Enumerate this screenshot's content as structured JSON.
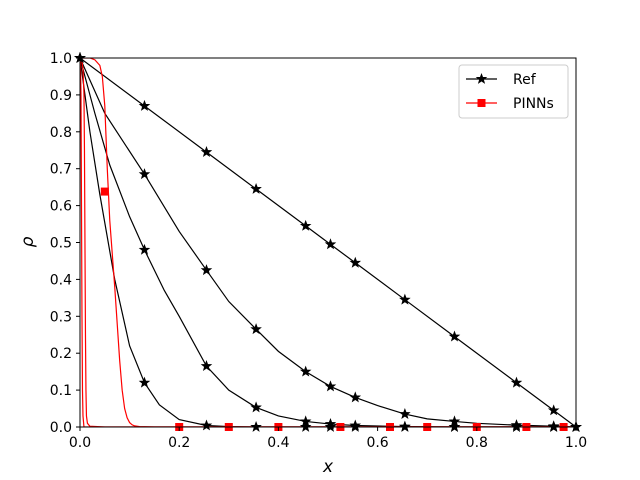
{
  "chart_data": {
    "type": "line",
    "xlabel": "x",
    "ylabel": "ρ",
    "xlim": [
      0.0,
      1.0
    ],
    "ylim": [
      0.0,
      1.0
    ],
    "xticks": [
      "0.0",
      "0.2",
      "0.4",
      "0.6",
      "0.8",
      "1.0"
    ],
    "yticks": [
      "0.0",
      "0.1",
      "0.2",
      "0.3",
      "0.4",
      "0.5",
      "0.6",
      "0.7",
      "0.8",
      "0.9",
      "1.0"
    ],
    "grid": false,
    "legend_position": "top-right",
    "legend": [
      {
        "label": "Ref",
        "color": "#000000",
        "marker": "star"
      },
      {
        "label": "PINNs",
        "color": "#ff0000",
        "marker": "square"
      }
    ],
    "marker_x": [
      0.0,
      0.13,
      0.255,
      0.355,
      0.455,
      0.505,
      0.555,
      0.655,
      0.755,
      0.88,
      0.955,
      1.0
    ],
    "series": [
      {
        "color": "#000000",
        "marker": "star",
        "x": [
          0.0,
          0.13,
          0.255,
          0.355,
          0.455,
          0.505,
          0.555,
          0.655,
          0.755,
          0.88,
          0.955,
          1.0
        ],
        "y": [
          1.0,
          0.87,
          0.745,
          0.645,
          0.545,
          0.495,
          0.445,
          0.345,
          0.245,
          0.12,
          0.045,
          0.0
        ]
      },
      {
        "color": "#000000",
        "marker": "star",
        "x": [
          0.0,
          0.05,
          0.13,
          0.2,
          0.255,
          0.3,
          0.355,
          0.4,
          0.455,
          0.505,
          0.555,
          0.6,
          0.655,
          0.7,
          0.755,
          0.8,
          0.88,
          0.955,
          1.0
        ],
        "y": [
          1.0,
          0.85,
          0.685,
          0.53,
          0.425,
          0.34,
          0.265,
          0.205,
          0.15,
          0.11,
          0.08,
          0.058,
          0.035,
          0.022,
          0.015,
          0.01,
          0.005,
          0.002,
          0.0
        ]
      },
      {
        "color": "#000000",
        "marker": "star",
        "x": [
          0.0,
          0.03,
          0.06,
          0.1,
          0.13,
          0.17,
          0.2,
          0.255,
          0.3,
          0.355,
          0.4,
          0.455,
          0.505,
          0.555,
          0.655,
          0.755,
          0.88,
          0.955,
          1.0
        ],
        "y": [
          1.0,
          0.85,
          0.71,
          0.57,
          0.48,
          0.37,
          0.3,
          0.165,
          0.1,
          0.053,
          0.03,
          0.015,
          0.008,
          0.004,
          0.001,
          0.0,
          0.0,
          0.0,
          0.0
        ]
      },
      {
        "color": "#000000",
        "marker": "star",
        "x": [
          0.0,
          0.02,
          0.04,
          0.07,
          0.1,
          0.13,
          0.16,
          0.2,
          0.255,
          0.3,
          0.355,
          0.455,
          0.505,
          0.555,
          0.655,
          0.755,
          0.88,
          0.955,
          1.0
        ],
        "y": [
          1.0,
          0.8,
          0.63,
          0.4,
          0.22,
          0.12,
          0.06,
          0.02,
          0.004,
          0.001,
          0.0,
          0.0,
          0.0,
          0.0,
          0.0,
          0.0,
          0.0,
          0.0,
          0.0
        ]
      },
      {
        "color": "#ff0000",
        "marker": "square",
        "x": [
          0.0,
          0.005,
          0.01,
          0.015,
          0.02,
          0.03,
          0.04,
          0.045,
          0.05,
          0.055,
          0.06,
          0.065,
          0.07,
          0.075,
          0.08,
          0.085,
          0.09,
          0.095,
          0.1,
          0.105,
          0.11,
          0.12,
          0.15,
          0.2,
          0.3,
          0.4,
          0.5,
          0.6,
          0.7,
          0.8,
          0.9,
          1.0
        ],
        "y": [
          1.0,
          1.0,
          1.0,
          1.0,
          1.0,
          0.995,
          0.98,
          0.95,
          0.87,
          0.7,
          0.56,
          0.47,
          0.38,
          0.28,
          0.18,
          0.1,
          0.05,
          0.025,
          0.012,
          0.006,
          0.003,
          0.001,
          0.0,
          0.0,
          0.0,
          0.0,
          0.0,
          0.0,
          0.0,
          0.0,
          0.0,
          0.0
        ],
        "markers_x": [
          0.05,
          0.2,
          0.3,
          0.4,
          0.525,
          0.625,
          0.7,
          0.8,
          0.9,
          0.975
        ],
        "markers_y": [
          0.638,
          0.0,
          0.0,
          0.0,
          0.0,
          0.0,
          0.0,
          0.0,
          0.0,
          0.0
        ]
      },
      {
        "color": "#ff0000",
        "marker": "none",
        "x": [
          0.0,
          0.002,
          0.004,
          0.006,
          0.008,
          0.009,
          0.01,
          0.011,
          0.012,
          0.013,
          0.015,
          0.02,
          0.05,
          1.0
        ],
        "y": [
          1.0,
          1.0,
          0.99,
          0.97,
          0.9,
          0.75,
          0.5,
          0.25,
          0.1,
          0.03,
          0.01,
          0.002,
          0.0,
          0.0
        ]
      },
      {
        "color": "#ff0000",
        "marker": "none",
        "x": [
          0.0,
          0.001,
          0.002,
          0.003,
          0.004,
          0.005,
          0.006,
          0.008,
          1.0
        ],
        "y": [
          1.0,
          0.98,
          0.9,
          0.6,
          0.3,
          0.1,
          0.03,
          0.0,
          0.0
        ]
      }
    ]
  }
}
